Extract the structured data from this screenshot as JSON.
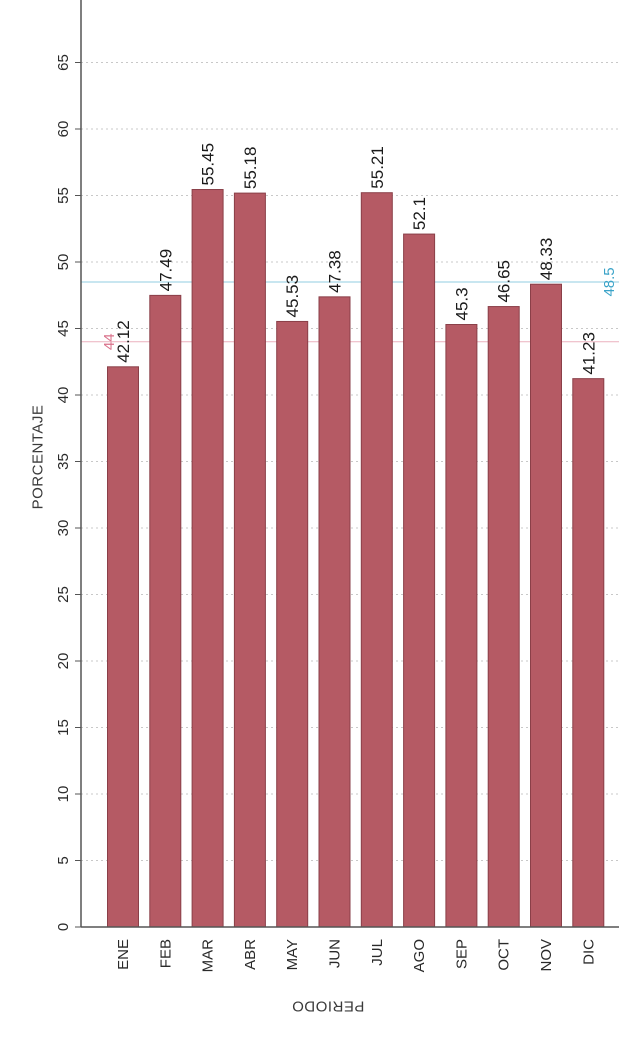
{
  "chart_data": {
    "type": "bar",
    "orientation": "vertical-rotated-labels",
    "ylabel": "PORCENTAJE",
    "xlabel": "PERIODO",
    "categories": [
      "ENE",
      "FEB",
      "MAR",
      "ABR",
      "MAY",
      "JUN",
      "JUL",
      "AGO",
      "SEP",
      "OCT",
      "NOV",
      "DIC"
    ],
    "values": [
      42.12,
      47.49,
      55.45,
      55.18,
      45.53,
      47.38,
      55.21,
      52.1,
      45.3,
      46.65,
      48.33,
      41.23
    ],
    "data_labels": [
      "42.12",
      "47.49",
      "55.45",
      "55.18",
      "45.53",
      "47.38",
      "55.21",
      "52.1",
      "45.3",
      "46.65",
      "48.33",
      "41.23"
    ],
    "y_ticks": [
      0,
      5,
      10,
      15,
      20,
      25,
      30,
      35,
      40,
      45,
      50,
      55,
      60,
      65
    ],
    "ylim": [
      0,
      70
    ],
    "grid": true,
    "reference_lines": [
      {
        "value": 44,
        "label": "44",
        "color": "#d9708a"
      },
      {
        "value": 48.5,
        "label": "48.5",
        "color": "#3aa3c8"
      }
    ],
    "colors": {
      "bar": "#b55a64",
      "bar_edge": "#8a3f48",
      "grid": "#c8c8c8",
      "axis": "#555555"
    }
  }
}
